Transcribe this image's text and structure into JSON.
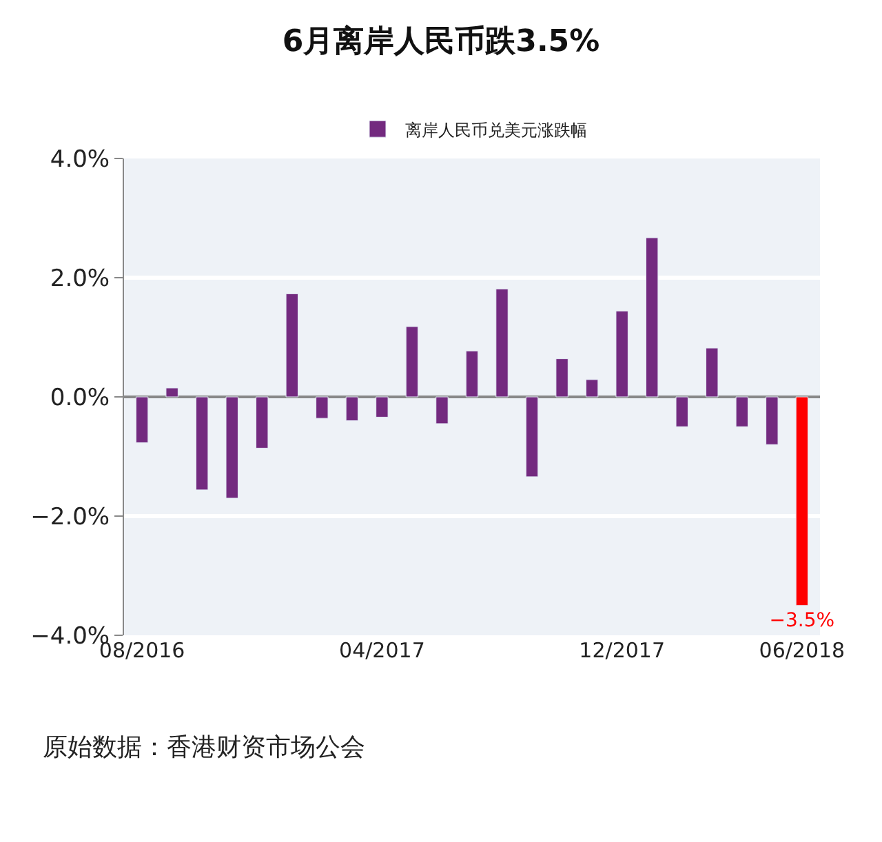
{
  "chart_data": {
    "type": "bar",
    "title": "6月离岸人民币跌3.5%",
    "categories": [
      "08/2016",
      null,
      null,
      null,
      null,
      null,
      null,
      null,
      "04/2017",
      null,
      null,
      null,
      null,
      null,
      null,
      null,
      "12/2017",
      null,
      null,
      null,
      null,
      null,
      "06/2018"
    ],
    "series": [
      {
        "name": "离岸人民币兑美元涨跌幅",
        "color": "#732a7f",
        "colors": [
          null,
          null,
          null,
          null,
          null,
          null,
          null,
          null,
          null,
          null,
          null,
          null,
          null,
          null,
          null,
          null,
          null,
          null,
          null,
          null,
          null,
          null,
          "#ff0000"
        ],
        "values": [
          -0.77,
          0.15,
          -1.56,
          -1.7,
          -0.86,
          1.73,
          -0.36,
          -0.4,
          -0.34,
          1.18,
          -0.45,
          0.77,
          1.81,
          -1.34,
          0.64,
          0.29,
          1.44,
          2.67,
          -0.5,
          0.82,
          -0.5,
          -0.8,
          -3.5
        ],
        "value_labels": [
          null,
          null,
          null,
          null,
          null,
          null,
          null,
          null,
          null,
          null,
          null,
          null,
          null,
          null,
          null,
          null,
          null,
          null,
          null,
          null,
          null,
          null,
          "−3.5%"
        ]
      }
    ],
    "ylim": [
      -4,
      4
    ],
    "yticks": [
      {
        "value": -4,
        "label": "−4.0%"
      },
      {
        "value": -2,
        "label": "−2.0%"
      },
      {
        "value": 0,
        "label": "0.0%"
      },
      {
        "value": 2,
        "label": "2.0%"
      },
      {
        "value": 4,
        "label": "4.0%"
      }
    ],
    "grid": "y",
    "legend": "top",
    "annotations": [
      "原始数据：香港财资市场公会"
    ]
  }
}
